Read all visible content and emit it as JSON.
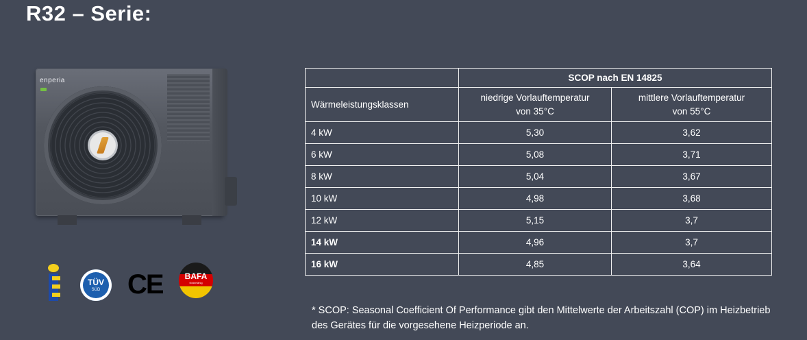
{
  "title": "R32 – Serie:",
  "unit": {
    "brand": "enperia"
  },
  "logos": {
    "tuv": "TÜV",
    "tuv_sub": "SÜD",
    "ce": "CE",
    "bafa": "BAFA",
    "bafa_sub": "förderfähig"
  },
  "table": {
    "group_header": "SCOP nach EN 14825",
    "col_class": "Wärmeleistungsklassen",
    "col_low_line1": "niedrige Vorlauftemperatur",
    "col_low_line2": "von 35°C",
    "col_mid_line1": "mittlere Vorlauftemperatur",
    "col_mid_line2": "von 55°C",
    "rows": [
      {
        "class": "4 kW",
        "low": "5,30",
        "mid": "3,62",
        "bold": false
      },
      {
        "class": "6 kW",
        "low": "5,08",
        "mid": "3,71",
        "bold": false
      },
      {
        "class": "8 kW",
        "low": "5,04",
        "mid": "3,67",
        "bold": false
      },
      {
        "class": "10 kW",
        "low": "4,98",
        "mid": "3,68",
        "bold": false
      },
      {
        "class": "12 kW",
        "low": "5,15",
        "mid": "3,7",
        "bold": false
      },
      {
        "class": "14 kW",
        "low": "4,96",
        "mid": "3,7",
        "bold": true
      },
      {
        "class": "16 kW",
        "low": "4,85",
        "mid": "3,64",
        "bold": true
      }
    ]
  },
  "footnote": "* SCOP: Seasonal Coefficient Of Performance gibt den Mittelwerte der Arbeitszahl (COP) im Heizbetrieb des Gerätes für die vorgesehene Heizperiode an."
}
